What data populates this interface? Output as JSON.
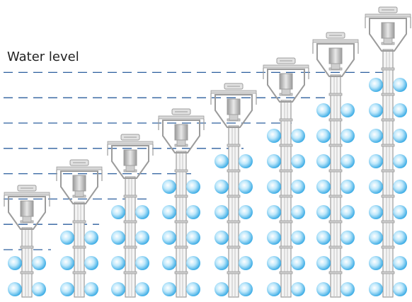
{
  "label": "Water level"
}
